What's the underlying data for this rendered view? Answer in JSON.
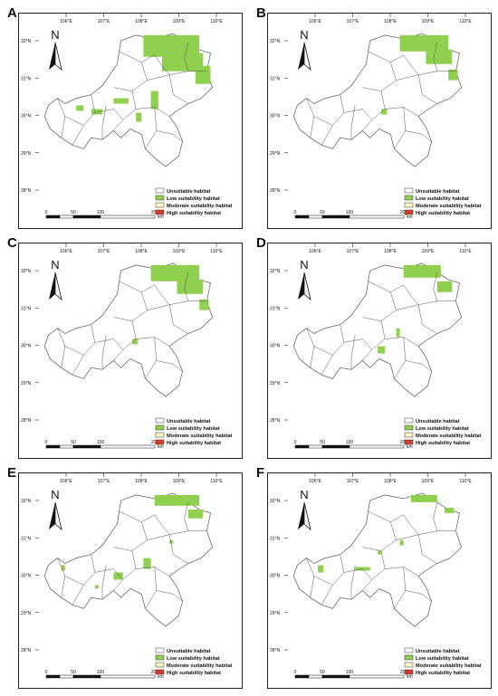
{
  "figure": {
    "panels": [
      {
        "label": "A",
        "coverage": "wide"
      },
      {
        "label": "B",
        "coverage": "north-heavy"
      },
      {
        "label": "C",
        "coverage": "north-heavy"
      },
      {
        "label": "D",
        "coverage": "north-moderate"
      },
      {
        "label": "E",
        "coverage": "scattered"
      },
      {
        "label": "F",
        "coverage": "sparse"
      }
    ],
    "lon_ticks": [
      "106°E",
      "107°E",
      "108°E",
      "109°E",
      "110°E"
    ],
    "lat_ticks": [
      "32°N",
      "31°N",
      "30°N",
      "29°N",
      "28°N"
    ],
    "north_label": "N",
    "scale_labels": [
      "0",
      "50",
      "100",
      "200"
    ],
    "scale_unit": "km",
    "legend": [
      {
        "label": "Unsuitable  habitat",
        "color": "#ffffff"
      },
      {
        "label": "Low suitability  habitat",
        "color": "#8fd14f"
      },
      {
        "label": "Moderate suitability habitat",
        "color": "#fff8c2"
      },
      {
        "label": "High suitability  habitat",
        "color": "#d93a2b"
      }
    ],
    "colors": {
      "suitable_low": "#8fd14f",
      "boundary": "#555555",
      "frame": "#222222"
    }
  }
}
